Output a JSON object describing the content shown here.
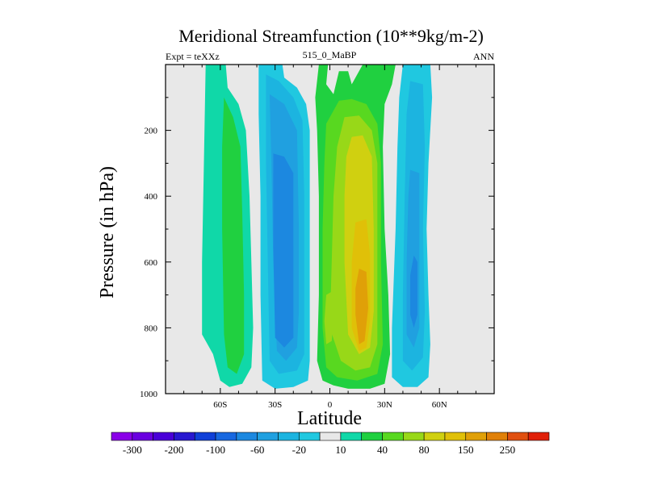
{
  "chart_data": {
    "type": "heatmap",
    "title": "Meridional Streamfunction (10**9kg/m-2)",
    "left_label": "Expt = teXXz",
    "center_label": "515_0_MaBP",
    "right_label": "ANN",
    "xlabel": "Latitude",
    "ylabel": "Pressure (in hPa)",
    "xlim": [
      -90,
      90
    ],
    "ylim": [
      1000,
      0
    ],
    "x_ticks": [
      -60,
      -30,
      0,
      30,
      60
    ],
    "x_tick_labels": [
      "60S",
      "30S",
      "0",
      "30N",
      "60N"
    ],
    "y_ticks": [
      200,
      400,
      600,
      800,
      1000
    ],
    "y_tick_labels": [
      "200",
      "400",
      "600",
      "800",
      "1000"
    ],
    "colorbar": {
      "colors": [
        "#8a00e8",
        "#6a00e0",
        "#4a00d8",
        "#2818d0",
        "#1040d8",
        "#1868e0",
        "#1c88e0",
        "#20a0e0",
        "#1cb4e0",
        "#20c8e0",
        "#e8e8e8",
        "#10d8a8",
        "#20d040",
        "#58d820",
        "#98d818",
        "#d0d010",
        "#e0c008",
        "#e0a008",
        "#e08008",
        "#e05010",
        "#e02008"
      ],
      "labels": [
        "-300",
        "-200",
        "-100",
        "-60",
        "-20",
        "10",
        "40",
        "80",
        "150",
        "250"
      ]
    },
    "contours": [
      {
        "name": "south-green-band",
        "color": "#10d8a8",
        "pts": [
          [
            -68,
            0
          ],
          [
            -57,
            0
          ],
          [
            -56,
            70
          ],
          [
            -50,
            120
          ],
          [
            -46,
            200
          ],
          [
            -44,
            400
          ],
          [
            -43,
            600
          ],
          [
            -42,
            800
          ],
          [
            -43,
            920
          ],
          [
            -48,
            970
          ],
          [
            -55,
            980
          ],
          [
            -60,
            960
          ],
          [
            -64,
            880
          ],
          [
            -70,
            820
          ],
          [
            -70,
            600
          ],
          [
            -69,
            300
          ]
        ]
      },
      {
        "name": "south-green-core",
        "color": "#20d040",
        "pts": [
          [
            -58,
            100
          ],
          [
            -53,
            160
          ],
          [
            -49,
            250
          ],
          [
            -48,
            450
          ],
          [
            -47,
            700
          ],
          [
            -47,
            880
          ],
          [
            -51,
            940
          ],
          [
            -56,
            920
          ],
          [
            -58,
            820
          ],
          [
            -59,
            500
          ],
          [
            -59,
            250
          ]
        ]
      },
      {
        "name": "south-blue-outer",
        "color": "#20c8e0",
        "pts": [
          [
            -39,
            0
          ],
          [
            -26,
            0
          ],
          [
            -25,
            40
          ],
          [
            -18,
            70
          ],
          [
            -13,
            120
          ],
          [
            -11,
            200
          ],
          [
            -11,
            400
          ],
          [
            -11,
            700
          ],
          [
            -11,
            900
          ],
          [
            -12,
            960
          ],
          [
            -20,
            980
          ],
          [
            -30,
            985
          ],
          [
            -37,
            960
          ],
          [
            -38,
            700
          ],
          [
            -38,
            400
          ],
          [
            -39,
            150
          ]
        ]
      },
      {
        "name": "south-blue-mid",
        "color": "#1cb4e0",
        "pts": [
          [
            -35,
            30
          ],
          [
            -28,
            50
          ],
          [
            -20,
            100
          ],
          [
            -15,
            170
          ],
          [
            -14,
            400
          ],
          [
            -14,
            700
          ],
          [
            -14,
            880
          ],
          [
            -18,
            930
          ],
          [
            -28,
            940
          ],
          [
            -33,
            900
          ],
          [
            -34,
            600
          ],
          [
            -35,
            300
          ]
        ]
      },
      {
        "name": "south-blue-in",
        "color": "#20a0e0",
        "pts": [
          [
            -33,
            90
          ],
          [
            -25,
            120
          ],
          [
            -18,
            200
          ],
          [
            -17,
            500
          ],
          [
            -17,
            750
          ],
          [
            -18,
            860
          ],
          [
            -24,
            900
          ],
          [
            -29,
            870
          ],
          [
            -31,
            600
          ],
          [
            -32,
            300
          ]
        ]
      },
      {
        "name": "south-blue-core",
        "color": "#1c88e0",
        "pts": [
          [
            -31,
            270
          ],
          [
            -25,
            280
          ],
          [
            -20,
            330
          ],
          [
            -20,
            600
          ],
          [
            -20,
            830
          ],
          [
            -25,
            860
          ],
          [
            -30,
            830
          ],
          [
            -31,
            550
          ]
        ]
      },
      {
        "name": "eq-green-band",
        "color": "#20d040",
        "pts": [
          [
            -6,
            0
          ],
          [
            -1,
            0
          ],
          [
            -2,
            60
          ],
          [
            2,
            90
          ],
          [
            5,
            20
          ],
          [
            10,
            20
          ],
          [
            12,
            60
          ],
          [
            18,
            0
          ],
          [
            36,
            0
          ],
          [
            34,
            60
          ],
          [
            30,
            120
          ],
          [
            29,
            250
          ],
          [
            30,
            500
          ],
          [
            32,
            700
          ],
          [
            33,
            880
          ],
          [
            30,
            970
          ],
          [
            22,
            985
          ],
          [
            10,
            985
          ],
          [
            2,
            975
          ],
          [
            -4,
            960
          ],
          [
            -7,
            900
          ],
          [
            -6,
            700
          ],
          [
            -6,
            400
          ],
          [
            -7,
            200
          ],
          [
            -8,
            100
          ]
        ]
      },
      {
        "name": "eq-lime-outer",
        "color": "#58d820",
        "pts": [
          [
            5,
            110
          ],
          [
            12,
            105
          ],
          [
            20,
            120
          ],
          [
            26,
            180
          ],
          [
            28,
            300
          ],
          [
            28,
            600
          ],
          [
            29,
            850
          ],
          [
            26,
            940
          ],
          [
            15,
            960
          ],
          [
            4,
            950
          ],
          [
            -2,
            920
          ],
          [
            -4,
            800
          ],
          [
            -4,
            500
          ],
          [
            -3,
            300
          ],
          [
            -2,
            180
          ]
        ]
      },
      {
        "name": "eq-lime-center",
        "color": "#98d818",
        "pts": [
          [
            8,
            160
          ],
          [
            16,
            155
          ],
          [
            23,
            200
          ],
          [
            26,
            300
          ],
          [
            26,
            600
          ],
          [
            26,
            850
          ],
          [
            22,
            920
          ],
          [
            14,
            930
          ],
          [
            6,
            900
          ],
          [
            0,
            800
          ],
          [
            1,
            600
          ],
          [
            2,
            400
          ],
          [
            4,
            250
          ]
        ]
      },
      {
        "name": "eq-yellow",
        "color": "#d0d010",
        "pts": [
          [
            12,
            220
          ],
          [
            18,
            215
          ],
          [
            23,
            280
          ],
          [
            24,
            500
          ],
          [
            24,
            750
          ],
          [
            22,
            860
          ],
          [
            16,
            880
          ],
          [
            10,
            820
          ],
          [
            8,
            600
          ],
          [
            8,
            400
          ],
          [
            9,
            280
          ]
        ]
      },
      {
        "name": "eq-orange",
        "color": "#e0c008",
        "pts": [
          [
            14,
            480
          ],
          [
            20,
            470
          ],
          [
            22,
            580
          ],
          [
            22,
            780
          ],
          [
            20,
            860
          ],
          [
            16,
            870
          ],
          [
            12,
            800
          ],
          [
            12,
            600
          ]
        ]
      },
      {
        "name": "eq-dark-orange",
        "color": "#e0a008",
        "pts": [
          [
            16,
            620
          ],
          [
            20,
            630
          ],
          [
            21,
            740
          ],
          [
            19,
            840
          ],
          [
            16,
            850
          ],
          [
            14,
            760
          ],
          [
            14,
            680
          ]
        ]
      },
      {
        "name": "eq-lime-sw-patch",
        "color": "#98d818",
        "pts": [
          [
            -2,
            700
          ],
          [
            1,
            690
          ],
          [
            2,
            760
          ],
          [
            1,
            840
          ],
          [
            -2,
            850
          ],
          [
            -3,
            780
          ]
        ]
      },
      {
        "name": "north-blue-outer",
        "color": "#20c8e0",
        "pts": [
          [
            40,
            0
          ],
          [
            55,
            0
          ],
          [
            56,
            100
          ],
          [
            54,
            300
          ],
          [
            53,
            500
          ],
          [
            54,
            700
          ],
          [
            55,
            850
          ],
          [
            54,
            950
          ],
          [
            48,
            980
          ],
          [
            40,
            980
          ],
          [
            34,
            950
          ],
          [
            34,
            800
          ],
          [
            36,
            500
          ],
          [
            37,
            250
          ],
          [
            38,
            100
          ]
        ]
      },
      {
        "name": "north-blue-mid",
        "color": "#1cb4e0",
        "pts": [
          [
            44,
            50
          ],
          [
            51,
            60
          ],
          [
            52,
            250
          ],
          [
            51,
            500
          ],
          [
            52,
            750
          ],
          [
            51,
            890
          ],
          [
            45,
            930
          ],
          [
            40,
            900
          ],
          [
            40,
            700
          ],
          [
            41,
            400
          ],
          [
            42,
            150
          ]
        ]
      },
      {
        "name": "north-blue-in",
        "color": "#20a0e0",
        "pts": [
          [
            44,
            320
          ],
          [
            49,
            330
          ],
          [
            49,
            560
          ],
          [
            49,
            800
          ],
          [
            46,
            860
          ],
          [
            42,
            820
          ],
          [
            42,
            600
          ],
          [
            43,
            400
          ]
        ]
      },
      {
        "name": "north-blue-core",
        "color": "#1c88e0",
        "pts": [
          [
            46,
            580
          ],
          [
            48,
            600
          ],
          [
            48,
            760
          ],
          [
            46,
            800
          ],
          [
            44,
            760
          ],
          [
            44,
            640
          ]
        ]
      }
    ]
  }
}
